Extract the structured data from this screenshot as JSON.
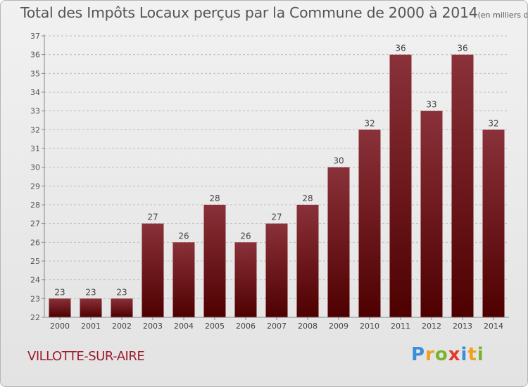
{
  "title": "Total des Impôts Locaux perçus par la Commune de 2000 à 2014",
  "title_unit": "(en milliers d'€)",
  "commune": "VILLOTTE-SUR-AIRE",
  "logo": {
    "text": "Proxiti",
    "letters": [
      "P",
      "r",
      "o",
      "x",
      "i",
      "t",
      "i"
    ]
  },
  "colors": {
    "bar_top": "#8a3139",
    "bar_bottom": "#4e0000",
    "commune": "#9c1b2c"
  },
  "chart_data": {
    "type": "bar",
    "title": "Total des Impôts Locaux perçus par la Commune de 2000 à 2014",
    "unit": "(en milliers d'€)",
    "xlabel": "",
    "ylabel": "",
    "categories": [
      "2000",
      "2001",
      "2002",
      "2003",
      "2004",
      "2005",
      "2006",
      "2007",
      "2008",
      "2009",
      "2010",
      "2011",
      "2012",
      "2013",
      "2014"
    ],
    "values": [
      23,
      23,
      23,
      27,
      26,
      28,
      26,
      27,
      28,
      30,
      32,
      36,
      33,
      36,
      32
    ],
    "ylim": [
      22,
      37
    ],
    "yticks": [
      22,
      23,
      24,
      25,
      26,
      27,
      28,
      29,
      30,
      31,
      32,
      33,
      34,
      35,
      36,
      37
    ],
    "grid": "y-dashed",
    "legend": "none"
  }
}
